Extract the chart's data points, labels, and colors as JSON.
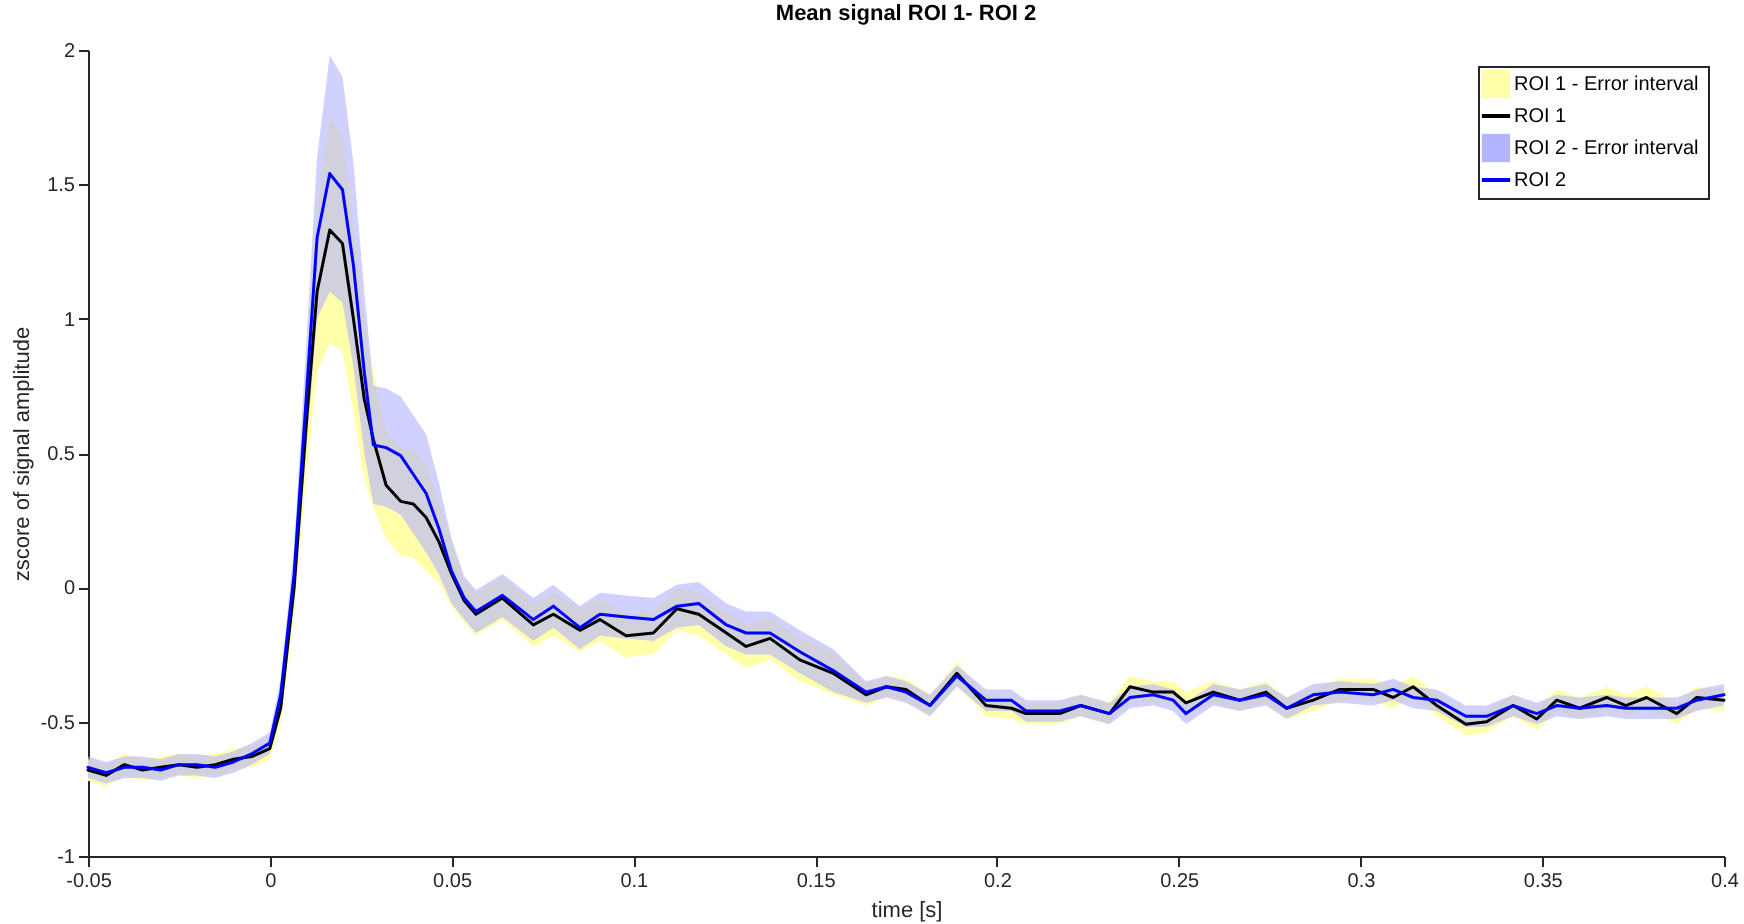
{
  "chart_data": {
    "type": "line",
    "title": "Mean signal ROI 1- ROI 2",
    "xlabel": "time [s]",
    "ylabel": "zscore of signal amplitude",
    "x": [
      -0.05,
      -0.045,
      -0.04,
      -0.035,
      -0.03,
      -0.025,
      -0.02,
      -0.015,
      -0.01,
      -0.005,
      0,
      0.003,
      0.0067,
      0.01,
      0.013,
      0.0165,
      0.02,
      0.023,
      0.026,
      0.0285,
      0.032,
      0.036,
      0.0395,
      0.043,
      0.0465,
      0.05,
      0.0535,
      0.0567,
      0.064,
      0.0725,
      0.078,
      0.0853,
      0.0908,
      0.098,
      0.1055,
      0.112,
      0.118,
      0.1256,
      0.131,
      0.1376,
      0.1458,
      0.155,
      0.164,
      0.1696,
      0.175,
      0.1816,
      0.189,
      0.197,
      0.204,
      0.208,
      0.2173,
      0.223,
      0.231,
      0.2366,
      0.243,
      0.2485,
      0.252,
      0.2595,
      0.2668,
      0.274,
      0.2797,
      0.287,
      0.2943,
      0.3035,
      0.309,
      0.3145,
      0.321,
      0.329,
      0.3347,
      0.342,
      0.3485,
      0.354,
      0.3603,
      0.3677,
      0.373,
      0.3787,
      0.387,
      0.3925,
      0.4
    ],
    "series": [
      {
        "name": "ROI 1 - Error interval",
        "type": "area",
        "color": "#ffffaa",
        "values": [
          null,
          null,
          null,
          null,
          null,
          null,
          null,
          null,
          null,
          null,
          null,
          null,
          null,
          null,
          null,
          null,
          null,
          null,
          null,
          null,
          null,
          null,
          null,
          null,
          null,
          null,
          null,
          null,
          null,
          null,
          null,
          null,
          null,
          null,
          null,
          null,
          null,
          null,
          null,
          null,
          null,
          null,
          null,
          null,
          null,
          null,
          null,
          null,
          null,
          null,
          null,
          null,
          null,
          null,
          null,
          null,
          null,
          null,
          null,
          null,
          null,
          null,
          null,
          null,
          null,
          null,
          null,
          null,
          null,
          null,
          null,
          null,
          null,
          null,
          null,
          null,
          null,
          null,
          null
        ],
        "lower": [
          -0.72,
          -0.74,
          -0.7,
          -0.72,
          -0.71,
          -0.7,
          -0.71,
          -0.7,
          -0.68,
          -0.67,
          -0.64,
          -0.51,
          -0.1,
          0.4,
          0.8,
          0.91,
          0.88,
          0.65,
          0.4,
          0.3,
          0.18,
          0.12,
          0.11,
          0.06,
          0.02,
          -0.07,
          -0.13,
          -0.18,
          -0.12,
          -0.22,
          -0.18,
          -0.24,
          -0.2,
          -0.26,
          -0.25,
          -0.16,
          -0.18,
          -0.25,
          -0.3,
          -0.27,
          -0.35,
          -0.4,
          -0.44,
          -0.41,
          -0.42,
          -0.48,
          -0.36,
          -0.48,
          -0.49,
          -0.51,
          -0.51,
          -0.48,
          -0.51,
          -0.41,
          -0.43,
          -0.43,
          -0.47,
          -0.43,
          -0.46,
          -0.43,
          -0.49,
          -0.46,
          -0.42,
          -0.42,
          -0.45,
          -0.41,
          -0.48,
          -0.55,
          -0.54,
          -0.48,
          -0.53,
          -0.46,
          -0.49,
          -0.45,
          -0.48,
          -0.45,
          -0.51,
          -0.45,
          -0.46
        ],
        "upper": [
          -0.64,
          -0.66,
          -0.62,
          -0.64,
          -0.63,
          -0.62,
          -0.63,
          -0.62,
          -0.6,
          -0.59,
          -0.56,
          -0.39,
          0.1,
          0.8,
          1.4,
          1.75,
          1.68,
          1.35,
          1.0,
          0.8,
          0.58,
          0.52,
          0.51,
          0.46,
          0.32,
          0.17,
          0.03,
          -0.02,
          0.04,
          -0.06,
          -0.02,
          -0.08,
          -0.04,
          -0.1,
          -0.09,
          0.0,
          -0.02,
          -0.09,
          -0.14,
          -0.11,
          -0.19,
          -0.24,
          -0.36,
          -0.33,
          -0.34,
          -0.4,
          -0.28,
          -0.4,
          -0.41,
          -0.43,
          -0.43,
          -0.4,
          -0.43,
          -0.33,
          -0.35,
          -0.35,
          -0.39,
          -0.35,
          -0.38,
          -0.35,
          -0.41,
          -0.38,
          -0.34,
          -0.34,
          -0.37,
          -0.33,
          -0.4,
          -0.47,
          -0.46,
          -0.4,
          -0.45,
          -0.38,
          -0.41,
          -0.37,
          -0.4,
          -0.37,
          -0.43,
          -0.37,
          -0.38
        ]
      },
      {
        "name": "ROI 1",
        "type": "line",
        "color": "#000000",
        "values": [
          -0.68,
          -0.7,
          -0.66,
          -0.68,
          -0.67,
          -0.66,
          -0.67,
          -0.66,
          -0.64,
          -0.63,
          -0.6,
          -0.45,
          0.0,
          0.6,
          1.1,
          1.33,
          1.28,
          1.0,
          0.7,
          0.55,
          0.38,
          0.32,
          0.31,
          0.26,
          0.17,
          0.05,
          -0.05,
          -0.1,
          -0.04,
          -0.14,
          -0.1,
          -0.16,
          -0.12,
          -0.18,
          -0.17,
          -0.08,
          -0.1,
          -0.17,
          -0.22,
          -0.19,
          -0.27,
          -0.32,
          -0.4,
          -0.37,
          -0.38,
          -0.44,
          -0.32,
          -0.44,
          -0.45,
          -0.47,
          -0.47,
          -0.44,
          -0.47,
          -0.37,
          -0.39,
          -0.39,
          -0.43,
          -0.39,
          -0.42,
          -0.39,
          -0.45,
          -0.42,
          -0.38,
          -0.38,
          -0.41,
          -0.37,
          -0.44,
          -0.51,
          -0.5,
          -0.44,
          -0.49,
          -0.42,
          -0.45,
          -0.41,
          -0.44,
          -0.41,
          -0.47,
          -0.41,
          -0.42
        ]
      },
      {
        "name": "ROI 2 - Error interval",
        "type": "area",
        "color": "#b3b3ff",
        "values": [
          null,
          null,
          null,
          null,
          null,
          null,
          null,
          null,
          null,
          null,
          null,
          null,
          null,
          null,
          null,
          null,
          null,
          null,
          null,
          null,
          null,
          null,
          null,
          null,
          null,
          null,
          null,
          null,
          null,
          null,
          null,
          null,
          null,
          null,
          null,
          null,
          null,
          null,
          null,
          null,
          null,
          null,
          null,
          null,
          null,
          null,
          null,
          null,
          null,
          null,
          null,
          null,
          null,
          null,
          null,
          null,
          null,
          null,
          null,
          null,
          null,
          null,
          null,
          null,
          null,
          null,
          null,
          null,
          null,
          null,
          null,
          null,
          null,
          null,
          null,
          null,
          null,
          null,
          null
        ],
        "lower": [
          -0.71,
          -0.73,
          -0.71,
          -0.71,
          -0.72,
          -0.7,
          -0.7,
          -0.71,
          -0.69,
          -0.66,
          -0.62,
          -0.46,
          -0.05,
          0.5,
          1.0,
          1.1,
          1.06,
          0.82,
          0.5,
          0.31,
          0.3,
          0.27,
          0.2,
          0.13,
          0.05,
          -0.06,
          -0.12,
          -0.17,
          -0.11,
          -0.2,
          -0.15,
          -0.23,
          -0.18,
          -0.19,
          -0.2,
          -0.15,
          -0.14,
          -0.22,
          -0.25,
          -0.25,
          -0.32,
          -0.39,
          -0.43,
          -0.41,
          -0.43,
          -0.48,
          -0.37,
          -0.46,
          -0.46,
          -0.5,
          -0.5,
          -0.48,
          -0.51,
          -0.45,
          -0.44,
          -0.46,
          -0.51,
          -0.44,
          -0.46,
          -0.44,
          -0.49,
          -0.44,
          -0.43,
          -0.44,
          -0.42,
          -0.45,
          -0.46,
          -0.52,
          -0.52,
          -0.48,
          -0.51,
          -0.48,
          -0.49,
          -0.48,
          -0.49,
          -0.49,
          -0.49,
          -0.46,
          -0.44
        ],
        "upper": [
          -0.63,
          -0.65,
          -0.63,
          -0.63,
          -0.64,
          -0.62,
          -0.62,
          -0.63,
          -0.61,
          -0.58,
          -0.54,
          -0.34,
          0.15,
          0.9,
          1.6,
          1.98,
          1.9,
          1.58,
          1.1,
          0.75,
          0.74,
          0.71,
          0.64,
          0.57,
          0.39,
          0.18,
          0.04,
          -0.01,
          0.05,
          -0.04,
          0.01,
          -0.07,
          -0.02,
          -0.03,
          -0.04,
          0.01,
          0.02,
          -0.06,
          -0.09,
          -0.09,
          -0.16,
          -0.23,
          -0.35,
          -0.33,
          -0.35,
          -0.4,
          -0.29,
          -0.38,
          -0.38,
          -0.42,
          -0.42,
          -0.4,
          -0.43,
          -0.37,
          -0.36,
          -0.38,
          -0.43,
          -0.36,
          -0.38,
          -0.36,
          -0.41,
          -0.36,
          -0.35,
          -0.36,
          -0.34,
          -0.37,
          -0.38,
          -0.44,
          -0.44,
          -0.4,
          -0.43,
          -0.4,
          -0.41,
          -0.4,
          -0.41,
          -0.41,
          -0.41,
          -0.38,
          -0.36
        ]
      },
      {
        "name": "ROI 2",
        "type": "line",
        "color": "#0000ff",
        "values": [
          -0.67,
          -0.69,
          -0.67,
          -0.67,
          -0.68,
          -0.66,
          -0.66,
          -0.67,
          -0.65,
          -0.62,
          -0.58,
          -0.4,
          0.05,
          0.7,
          1.3,
          1.54,
          1.48,
          1.2,
          0.8,
          0.53,
          0.52,
          0.49,
          0.42,
          0.35,
          0.22,
          0.06,
          -0.04,
          -0.09,
          -0.03,
          -0.12,
          -0.07,
          -0.15,
          -0.1,
          -0.11,
          -0.12,
          -0.07,
          -0.06,
          -0.14,
          -0.17,
          -0.17,
          -0.24,
          -0.31,
          -0.39,
          -0.37,
          -0.39,
          -0.44,
          -0.33,
          -0.42,
          -0.42,
          -0.46,
          -0.46,
          -0.44,
          -0.47,
          -0.41,
          -0.4,
          -0.42,
          -0.47,
          -0.4,
          -0.42,
          -0.4,
          -0.45,
          -0.4,
          -0.39,
          -0.4,
          -0.38,
          -0.41,
          -0.42,
          -0.48,
          -0.48,
          -0.44,
          -0.47,
          -0.44,
          -0.45,
          -0.44,
          -0.45,
          -0.45,
          -0.45,
          -0.42,
          -0.4
        ]
      }
    ],
    "xlim": [
      -0.05,
      0.4
    ],
    "xticks": [
      -0.05,
      0,
      0.05,
      0.1,
      0.15,
      0.2,
      0.25,
      0.3,
      0.35,
      0.4
    ],
    "ylim": [
      -1,
      2
    ],
    "yticks": [
      -1,
      -0.5,
      0,
      0.5,
      1,
      1.5,
      2
    ],
    "legend": "top right"
  }
}
